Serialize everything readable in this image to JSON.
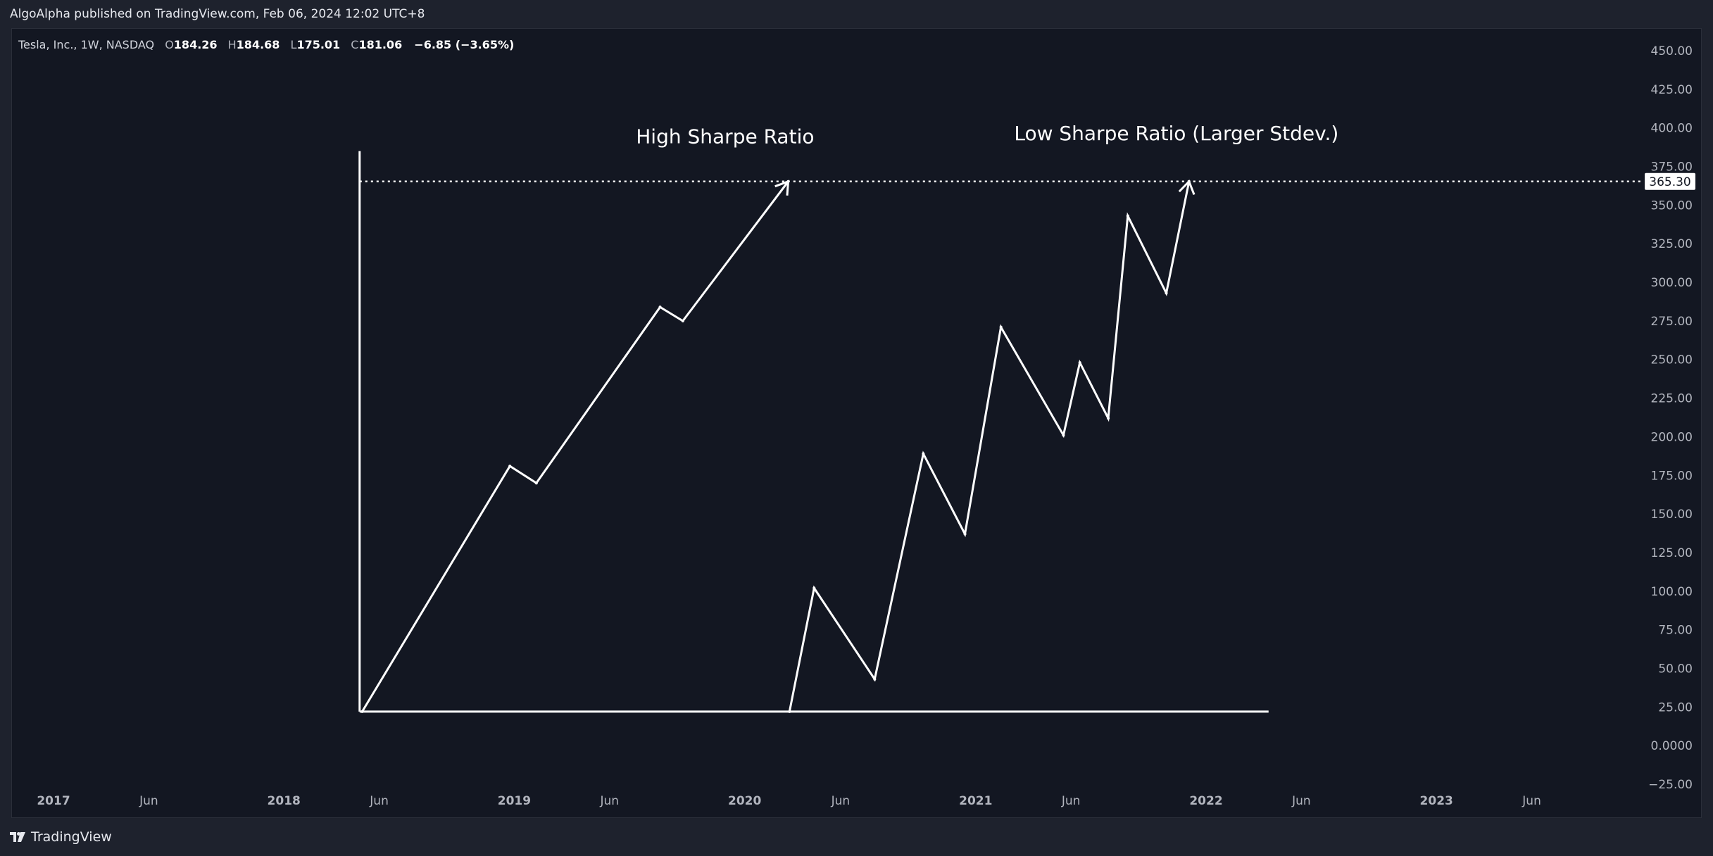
{
  "header": {
    "published_line": "AlgoAlpha published on TradingView.com, Feb 06, 2024 12:02 UTC+8"
  },
  "symbol": {
    "name": "Tesla, Inc., 1W, NASDAQ",
    "open_label": "O",
    "open": "184.26",
    "high_label": "H",
    "high": "184.68",
    "low_label": "L",
    "low": "175.01",
    "close_label": "C",
    "close": "181.06",
    "change": "−6.85 (−3.65%)"
  },
  "footer": {
    "brand": "TradingView"
  },
  "colors": {
    "background": "#131722",
    "frame": "#1e222d",
    "drawing": "#ffffff",
    "axis_text": "#b2b5be"
  },
  "chart_data": {
    "type": "line",
    "y_axis_ticks": [
      "450.00",
      "425.00",
      "400.00",
      "375.00",
      "350.00",
      "325.00",
      "300.00",
      "275.00",
      "250.00",
      "225.00",
      "200.00",
      "175.00",
      "150.00",
      "125.00",
      "100.00",
      "75.00",
      "50.00",
      "25.00",
      "0.0000",
      "−25.00"
    ],
    "y_range": [
      -25,
      450
    ],
    "x_axis_ticks": [
      {
        "label": "2017",
        "date": "2017-01"
      },
      {
        "label": "Jun",
        "date": "2017-06"
      },
      {
        "label": "2018",
        "date": "2018-01"
      },
      {
        "label": "Jun",
        "date": "2018-06"
      },
      {
        "label": "2019",
        "date": "2019-01"
      },
      {
        "label": "Jun",
        "date": "2019-06"
      },
      {
        "label": "2020",
        "date": "2020-01"
      },
      {
        "label": "Jun",
        "date": "2020-06"
      },
      {
        "label": "2021",
        "date": "2021-01"
      },
      {
        "label": "Jun",
        "date": "2021-06"
      },
      {
        "label": "2022",
        "date": "2022-01"
      },
      {
        "label": "Jun",
        "date": "2022-06"
      },
      {
        "label": "2023",
        "date": "2023-01"
      },
      {
        "label": "Jun",
        "date": "2023-06"
      }
    ],
    "price_label": "365.30",
    "price_level": 365.3,
    "annotations": [
      {
        "text": "High Sharpe Ratio",
        "x": "2019-12-01",
        "y": 390
      },
      {
        "text": "Low Sharpe Ratio (Larger Stdev.)",
        "x": "2021-11-15",
        "y": 392
      }
    ],
    "axes_drawing": {
      "vertical": [
        {
          "x": "2018-05-01",
          "y": 22
        },
        {
          "x": "2018-05-01",
          "y": 385
        }
      ],
      "horizontal": [
        {
          "x": "2018-05-01",
          "y": 22
        },
        {
          "x": "2022-04-10",
          "y": 22
        }
      ]
    },
    "series": [
      {
        "values": [
          {
            "x": "2018-05-05",
            "y": 22
          },
          {
            "x": "2018-12-25",
            "y": 181
          },
          {
            "x": "2019-02-05",
            "y": 170
          },
          {
            "x": "2019-08-20",
            "y": 284
          },
          {
            "x": "2019-09-25",
            "y": 275
          },
          {
            "x": "2020-03-10",
            "y": 365.3
          }
        ]
      },
      {
        "values": [
          {
            "x": "2020-03-12",
            "y": 22
          },
          {
            "x": "2020-04-20",
            "y": 102
          },
          {
            "x": "2020-07-25",
            "y": 43
          },
          {
            "x": "2020-10-10",
            "y": 189
          },
          {
            "x": "2020-12-15",
            "y": 137
          },
          {
            "x": "2021-02-10",
            "y": 271
          },
          {
            "x": "2021-05-20",
            "y": 201
          },
          {
            "x": "2021-06-15",
            "y": 248
          },
          {
            "x": "2021-07-30",
            "y": 212
          },
          {
            "x": "2021-08-30",
            "y": 343
          },
          {
            "x": "2021-10-30",
            "y": 293
          },
          {
            "x": "2021-12-05",
            "y": 365.3
          }
        ]
      }
    ]
  }
}
